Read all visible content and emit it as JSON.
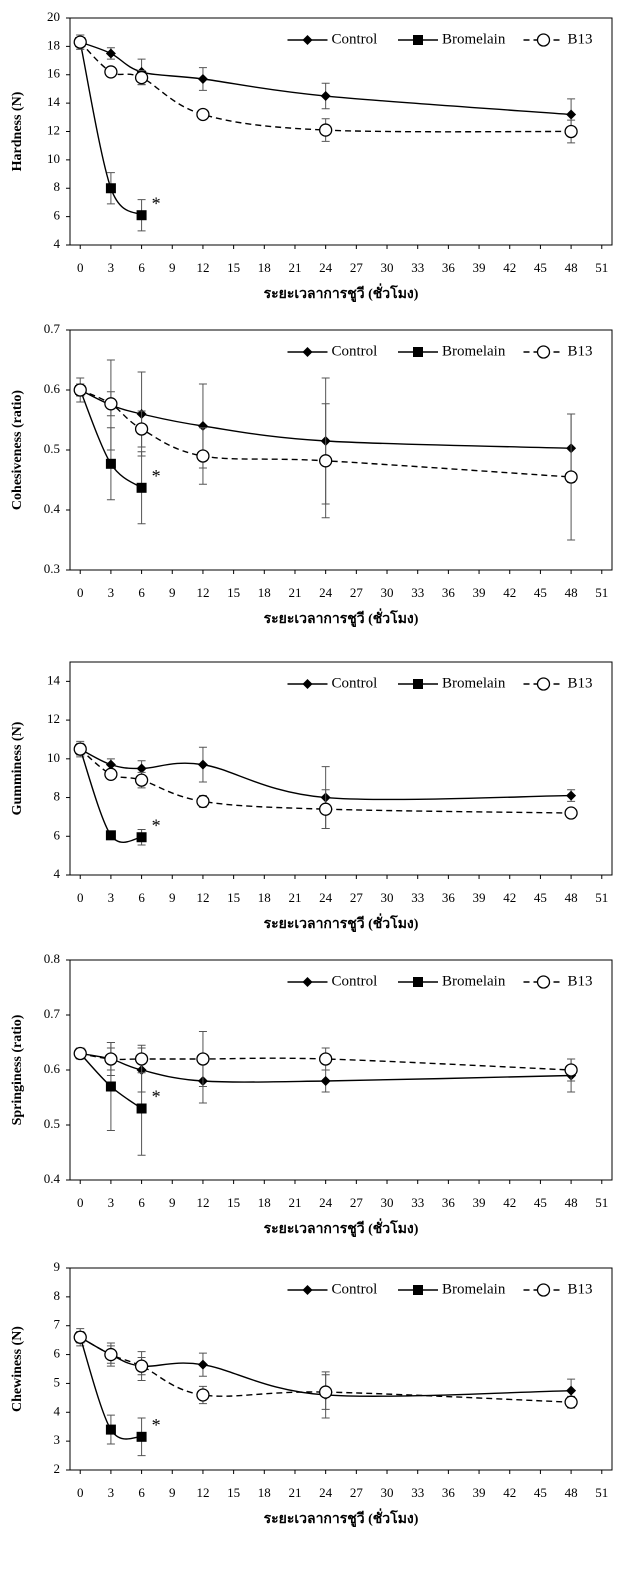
{
  "chart_data": [
    {
      "type": "line",
      "ylabel": "Hardness (N)",
      "xlabel": "ระยะเวลาการชูวี (ชั่วโมง)",
      "legend": "upper right",
      "x": [
        0,
        3,
        6,
        12,
        24,
        48
      ],
      "xlim": [
        -1,
        52
      ],
      "xticks": [
        0,
        3,
        6,
        9,
        12,
        15,
        18,
        21,
        24,
        27,
        30,
        33,
        36,
        39,
        42,
        45,
        48,
        51
      ],
      "ylim": [
        4,
        20
      ],
      "yticks": [
        4,
        6,
        8,
        10,
        12,
        14,
        16,
        18,
        20
      ],
      "series": [
        {
          "name": "Control",
          "color": "#000000",
          "marker": "diamond",
          "dashed": false,
          "values": [
            18.3,
            17.5,
            16.2,
            15.7,
            14.5,
            13.2
          ],
          "errors": [
            0.5,
            0.4,
            0.9,
            0.8,
            0.9,
            1.1
          ]
        },
        {
          "name": "Bromelain",
          "color": "#000000",
          "marker": "square",
          "dashed": false,
          "values": [
            18.3,
            8.0,
            6.1,
            null,
            null,
            null
          ],
          "errors": [
            0.5,
            1.1,
            1.1,
            null,
            null,
            null
          ],
          "annotation": "*"
        },
        {
          "name": "B13",
          "color": "#000000",
          "marker": "circle",
          "dashed": true,
          "values": [
            18.3,
            16.2,
            15.8,
            13.2,
            12.1,
            12.0
          ],
          "errors": [
            0.3,
            0.3,
            0.5,
            0.3,
            0.8,
            0.8
          ]
        }
      ]
    },
    {
      "type": "line",
      "ylabel": "Cohesiveness (ratio)",
      "xlabel": "ระยะเวลาการชูวี (ชั่วโมง)",
      "legend": "upper right",
      "x": [
        0,
        3,
        6,
        12,
        24,
        48
      ],
      "xlim": [
        -1,
        52
      ],
      "xticks": [
        0,
        3,
        6,
        9,
        12,
        15,
        18,
        21,
        24,
        27,
        30,
        33,
        36,
        39,
        42,
        45,
        48,
        51
      ],
      "ylim": [
        0.3,
        0.7
      ],
      "yticks": [
        0.3,
        0.4,
        0.5,
        0.6,
        0.7
      ],
      "series": [
        {
          "name": "Control",
          "color": "#000000",
          "marker": "diamond",
          "dashed": false,
          "values": [
            0.6,
            0.575,
            0.56,
            0.54,
            0.515,
            0.503
          ],
          "errors": [
            0.02,
            0.075,
            0.07,
            0.07,
            0.105,
            0.057
          ]
        },
        {
          "name": "Bromelain",
          "color": "#000000",
          "marker": "square",
          "dashed": false,
          "values": [
            0.6,
            0.477,
            0.437,
            null,
            null,
            null
          ],
          "errors": [
            0.01,
            0.06,
            0.06,
            null,
            null,
            null
          ],
          "annotation": "*"
        },
        {
          "name": "B13",
          "color": "#000000",
          "marker": "circle",
          "dashed": true,
          "values": [
            0.6,
            0.577,
            0.535,
            0.49,
            0.482,
            0.455
          ],
          "errors": [
            0.01,
            0.02,
            0.03,
            0.047,
            0.095,
            0.105
          ]
        }
      ]
    },
    {
      "type": "line",
      "ylabel": "Gumminess (N)",
      "xlabel": "ระยะเวลาการชูวี (ชั่วโมง)",
      "legend": "upper right",
      "x": [
        0,
        3,
        6,
        12,
        24,
        48
      ],
      "xlim": [
        -1,
        52
      ],
      "xticks": [
        0,
        3,
        6,
        9,
        12,
        15,
        18,
        21,
        24,
        27,
        30,
        33,
        36,
        39,
        42,
        45,
        48,
        51
      ],
      "ylim": [
        4,
        15
      ],
      "yticks": [
        4,
        6,
        8,
        10,
        12,
        14
      ],
      "series": [
        {
          "name": "Control",
          "color": "#000000",
          "marker": "diamond",
          "dashed": false,
          "values": [
            10.5,
            9.7,
            9.5,
            9.7,
            8.0,
            8.1
          ],
          "errors": [
            0.4,
            0.3,
            0.4,
            0.9,
            1.6,
            0.3
          ]
        },
        {
          "name": "Bromelain",
          "color": "#000000",
          "marker": "square",
          "dashed": false,
          "values": [
            10.5,
            6.05,
            5.95,
            null,
            null,
            null
          ],
          "errors": [
            0.3,
            0.2,
            0.4,
            null,
            null,
            null
          ],
          "annotation": "*"
        },
        {
          "name": "B13",
          "color": "#000000",
          "marker": "circle",
          "dashed": true,
          "values": [
            10.5,
            9.2,
            8.9,
            7.8,
            7.4,
            7.2
          ],
          "errors": [
            0.3,
            0.2,
            0.4,
            0.3,
            1.0,
            0.2
          ]
        }
      ]
    },
    {
      "type": "line",
      "ylabel": "Springiness (ratio)",
      "xlabel": "ระยะเวลาการชูวี (ชั่วโมง)",
      "legend": "upper right",
      "x": [
        0,
        3,
        6,
        12,
        24,
        48
      ],
      "xlim": [
        -1,
        52
      ],
      "xticks": [
        0,
        3,
        6,
        9,
        12,
        15,
        18,
        21,
        24,
        27,
        30,
        33,
        36,
        39,
        42,
        45,
        48,
        51
      ],
      "ylim": [
        0.4,
        0.8
      ],
      "yticks": [
        0.4,
        0.5,
        0.6,
        0.7,
        0.8
      ],
      "series": [
        {
          "name": "Control",
          "color": "#000000",
          "marker": "diamond",
          "dashed": false,
          "values": [
            0.63,
            0.62,
            0.6,
            0.58,
            0.58,
            0.59
          ],
          "errors": [
            0.01,
            0.03,
            0.04,
            0.04,
            0.02,
            0.03
          ]
        },
        {
          "name": "Bromelain",
          "color": "#000000",
          "marker": "square",
          "dashed": false,
          "values": [
            0.63,
            0.57,
            0.53,
            null,
            null,
            null
          ],
          "errors": [
            0.01,
            0.08,
            0.085,
            null,
            null,
            null
          ],
          "annotation": "*"
        },
        {
          "name": "B13",
          "color": "#000000",
          "marker": "circle",
          "dashed": true,
          "values": [
            0.63,
            0.62,
            0.62,
            0.62,
            0.62,
            0.6
          ],
          "errors": [
            0.01,
            0.02,
            0.025,
            0.05,
            0.02,
            0.02
          ]
        }
      ]
    },
    {
      "type": "line",
      "ylabel": "Chewiness (N)",
      "xlabel": "ระยะเวลาการชูวี (ชั่วโมง)",
      "legend": "upper right",
      "x": [
        0,
        3,
        6,
        12,
        24,
        48
      ],
      "xlim": [
        -1,
        52
      ],
      "xticks": [
        0,
        3,
        6,
        9,
        12,
        15,
        18,
        21,
        24,
        27,
        30,
        33,
        36,
        39,
        42,
        45,
        48,
        51
      ],
      "ylim": [
        2,
        9
      ],
      "yticks": [
        2,
        3,
        4,
        5,
        6,
        7,
        8,
        9
      ],
      "series": [
        {
          "name": "Control",
          "color": "#000000",
          "marker": "diamond",
          "dashed": false,
          "values": [
            6.6,
            6.0,
            5.6,
            5.65,
            4.6,
            4.75
          ],
          "errors": [
            0.3,
            0.4,
            0.5,
            0.4,
            0.8,
            0.4
          ]
        },
        {
          "name": "Bromelain",
          "color": "#000000",
          "marker": "square",
          "dashed": false,
          "values": [
            6.6,
            3.4,
            3.15,
            null,
            null,
            null
          ],
          "errors": [
            0.2,
            0.5,
            0.65,
            null,
            null,
            null
          ],
          "annotation": "*"
        },
        {
          "name": "B13",
          "color": "#000000",
          "marker": "circle",
          "dashed": true,
          "values": [
            6.6,
            6.0,
            5.6,
            4.6,
            4.7,
            4.35
          ],
          "errors": [
            0.2,
            0.3,
            0.3,
            0.3,
            0.6,
            0.2
          ]
        }
      ]
    }
  ]
}
